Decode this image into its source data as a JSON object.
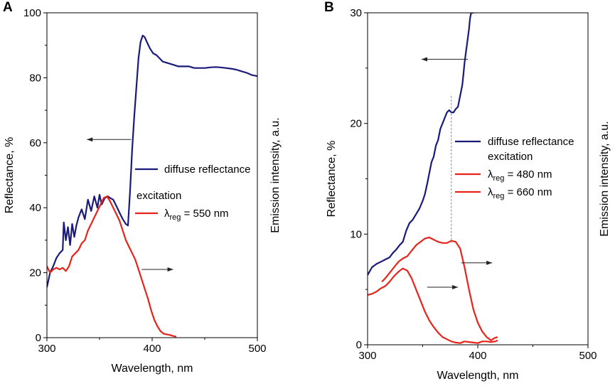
{
  "chart_data": [
    {
      "panel": "A",
      "type": "line",
      "xlabel": "Wavelength, nm",
      "ylabel": "Reflectance, %",
      "y2label": "Emission intensity, a.u.",
      "xlim": [
        300,
        500
      ],
      "ylim": [
        0,
        100
      ],
      "xticks": [
        300,
        400,
        500
      ],
      "yticks": [
        0,
        20,
        40,
        60,
        80,
        100
      ],
      "legend": [
        {
          "text": "diffuse reflectance",
          "color": "#1a1a7a"
        },
        {
          "heading": "excitation"
        },
        {
          "lambda": "λ",
          "sub": "reg",
          "rest": " = 550 nm",
          "color": "#e8231a"
        }
      ],
      "arrows": [
        {
          "direction": "left",
          "series": "diffuse reflectance",
          "from": [
            380,
            61
          ],
          "to": [
            338,
            61
          ]
        },
        {
          "direction": "right",
          "series": "excitation",
          "from": [
            390,
            21
          ],
          "to": [
            420,
            21
          ]
        }
      ],
      "series": [
        {
          "name": "diffuse reflectance",
          "color": "#1a1a7a",
          "x": [
            300,
            303,
            306,
            309,
            312,
            315,
            316,
            318,
            320,
            322,
            324,
            326,
            328,
            330,
            333,
            336,
            339,
            342,
            345,
            348,
            350,
            352,
            355,
            358,
            360,
            363,
            366,
            369,
            372,
            375,
            377,
            379,
            381,
            383,
            385,
            387,
            389,
            391,
            393,
            395,
            398,
            401,
            404,
            407,
            410,
            415,
            420,
            425,
            430,
            435,
            440,
            445,
            450,
            455,
            460,
            465,
            470,
            475,
            480,
            485,
            490,
            495,
            500
          ],
          "y": [
            15.5,
            20,
            22,
            24.5,
            26,
            27,
            35.5,
            30,
            34,
            28.5,
            35,
            31,
            34.5,
            37,
            39.5,
            36.5,
            42.5,
            39,
            43.5,
            40,
            44,
            41,
            43,
            43.5,
            43,
            42.5,
            40.5,
            38.5,
            36.5,
            35,
            34.5,
            45,
            58,
            68,
            77,
            86,
            91,
            93,
            92.5,
            91,
            89,
            87.5,
            87,
            86,
            85,
            84.5,
            84,
            83.5,
            83.5,
            83.5,
            83,
            83,
            83,
            83.2,
            83.3,
            83.2,
            83,
            82.8,
            82.5,
            82,
            81.5,
            80.8,
            80.5
          ]
        },
        {
          "name": "excitation λreg = 550 nm",
          "color": "#e8231a",
          "x": [
            300,
            303,
            306,
            309,
            312,
            315,
            318,
            321,
            324,
            327,
            330,
            333,
            336,
            339,
            342,
            345,
            348,
            351,
            354,
            357,
            360,
            363,
            366,
            369,
            372,
            375,
            378,
            381,
            384,
            387,
            390,
            393,
            396,
            399,
            402,
            405,
            408,
            411,
            414,
            417,
            420,
            423
          ],
          "y": [
            22,
            20,
            21,
            21.5,
            21,
            21.5,
            20.5,
            22,
            25,
            26,
            27,
            29,
            30,
            33,
            35,
            37,
            39,
            41,
            43,
            43.5,
            42,
            40,
            38,
            36,
            33,
            30,
            28,
            26,
            24,
            21,
            18,
            15,
            12,
            8.5,
            5.5,
            3.5,
            2,
            1.2,
            1,
            0.8,
            0.5,
            0.3
          ]
        }
      ]
    },
    {
      "panel": "B",
      "type": "line",
      "xlabel": "Wavelength, nm",
      "ylabel": "Reflectance, %",
      "y2label": "Emission intensity, a.u.",
      "xlim": [
        300,
        500
      ],
      "ylim": [
        0,
        30
      ],
      "xticks": [
        300,
        400,
        500
      ],
      "yticks": [
        0,
        10,
        20,
        30
      ],
      "vline_x": 376,
      "legend": [
        {
          "text": "diffuse reflectance",
          "color": "#1a1a7a"
        },
        {
          "heading": "excitation"
        },
        {
          "lambda": "λ",
          "sub": "reg",
          "rest": " = 480 nm",
          "color": "#e8231a"
        },
        {
          "lambda": "λ",
          "sub": "reg",
          "rest": " = 660 nm",
          "color": "#e8231a"
        }
      ],
      "arrows": [
        {
          "direction": "left",
          "series": "diffuse reflectance",
          "from": [
            391,
            25.8
          ],
          "to": [
            349,
            25.8
          ]
        },
        {
          "direction": "right",
          "series": "λreg = 480 nm",
          "from": [
            385,
            7.4
          ],
          "to": [
            413,
            7.4
          ]
        },
        {
          "direction": "right",
          "series": "λreg = 660 nm",
          "from": [
            354,
            5.2
          ],
          "to": [
            382,
            5.2
          ]
        }
      ],
      "series": [
        {
          "name": "diffuse reflectance",
          "color": "#1a1a7a",
          "x": [
            300,
            304,
            308,
            312,
            316,
            320,
            323,
            326,
            329,
            332,
            335,
            338,
            341,
            344,
            347,
            350,
            352,
            354,
            356,
            358,
            360,
            362,
            364,
            366,
            368,
            370,
            372,
            374,
            376,
            378,
            380,
            382,
            384,
            386,
            387,
            388,
            390,
            392,
            393,
            394,
            395,
            396
          ],
          "y": [
            6.3,
            7,
            7.3,
            7.5,
            7.7,
            7.9,
            8.3,
            8.6,
            9,
            9.3,
            10.3,
            11,
            11.3,
            11.8,
            12.3,
            13,
            13.6,
            14.5,
            15.5,
            16.5,
            17,
            18,
            18.5,
            19.5,
            20,
            20.5,
            21,
            21.2,
            21,
            21,
            21.3,
            21.5,
            22.5,
            23.5,
            24.5,
            25.5,
            27,
            28.5,
            29.5,
            30,
            30,
            30
          ]
        },
        {
          "name": "λreg = 480 nm",
          "color": "#e8231a",
          "x": [
            313,
            316,
            320,
            324,
            328,
            332,
            336,
            340,
            344,
            348,
            352,
            356,
            360,
            364,
            368,
            372,
            376,
            380,
            384,
            388,
            392,
            396,
            400,
            404,
            408,
            412,
            415,
            418
          ],
          "y": [
            5.7,
            6,
            6.5,
            7,
            7.5,
            7.8,
            8,
            8.5,
            9,
            9.3,
            9.6,
            9.7,
            9.5,
            9.3,
            9.2,
            9.2,
            9.4,
            9.3,
            8.7,
            7,
            5,
            3.2,
            2,
            1.2,
            0.7,
            0.4,
            0.6,
            0.7
          ]
        },
        {
          "name": "λreg = 660 nm",
          "color": "#e8231a",
          "x": [
            300,
            304,
            308,
            312,
            316,
            320,
            324,
            328,
            332,
            336,
            340,
            344,
            348,
            352,
            356,
            360,
            364,
            368,
            372,
            376,
            380,
            384,
            388,
            392,
            396,
            400,
            404,
            408,
            412,
            416,
            418
          ],
          "y": [
            4.5,
            4.6,
            4.8,
            5.1,
            5.3,
            5.7,
            6.2,
            6.6,
            6.9,
            6.7,
            6,
            5,
            4,
            3,
            2.2,
            1.6,
            1.1,
            0.7,
            0.5,
            0.3,
            0.2,
            0.15,
            0.3,
            0.25,
            0.2,
            0.15,
            0.3,
            0.3,
            0.25,
            0.3,
            0.4
          ]
        }
      ]
    }
  ]
}
